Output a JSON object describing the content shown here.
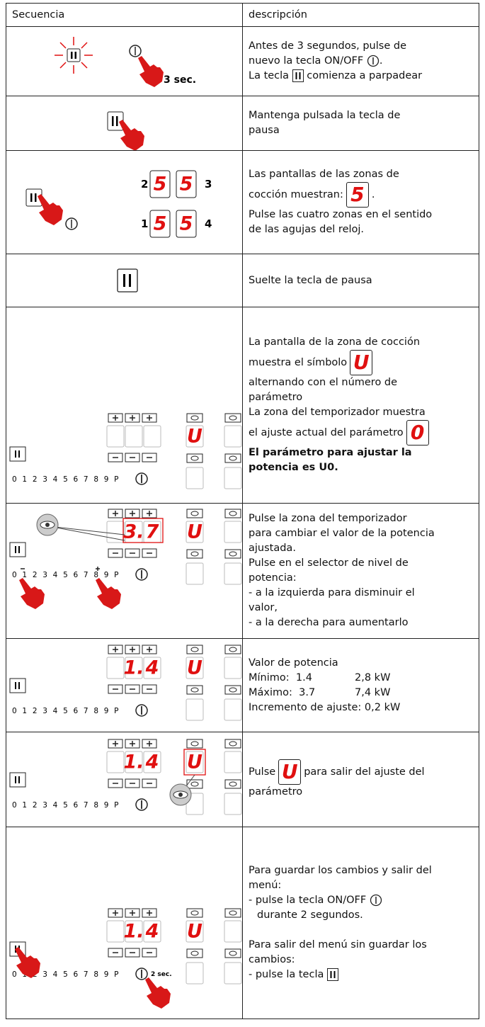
{
  "table": {
    "header": [
      "Secuencia",
      "descripción"
    ],
    "rows": [
      {
        "sequence": {
          "label": "3 sec."
        },
        "description": [
          "Antes de 3 segundos, pulse de",
          "nuevo la tecla ON/OFF",
          ".",
          "La tecla",
          "comienza a parpadear"
        ]
      },
      {
        "description": [
          "Mantenga pulsada la tecla de",
          "pausa"
        ]
      },
      {
        "sequence": {
          "zones": [
            "2",
            "3",
            "1",
            "4"
          ],
          "display": "5"
        },
        "description": [
          "Las pantallas de las zonas de",
          "cocción muestran:",
          ".",
          "Pulse las cuatro zonas en el sentido",
          "de las agujas del reloj."
        ],
        "display": "5"
      },
      {
        "description": [
          "Suelte la tecla de pausa"
        ]
      },
      {
        "panel": {
          "zone": "U",
          "scale": "0 1 2 3 4 5 6 7 8 9 P"
        },
        "description": [
          "La pantalla de la zona de cocción",
          "muestra el símbolo",
          "alternando con el número de",
          "parámetro",
          "La zona del temporizador muestra",
          "el ajuste actual del parámetro",
          "El parámetro para ajustar la",
          "potencia es U0."
        ],
        "displays": [
          "U",
          "0"
        ]
      },
      {
        "panel": {
          "power": [
            "3.",
            "7"
          ],
          "zone": "U",
          "scale": "0 1 2 3 4 5 6 7 8 9 P"
        },
        "description": [
          "Pulse la zona del temporizador",
          "para cambiar el valor de la potencia",
          "ajustada.",
          "Pulse en el selector de nivel de",
          "potencia:",
          "- a la izquierda para disminuir el",
          "valor,",
          "- a la derecha para aumentarlo"
        ]
      },
      {
        "panel": {
          "power": [
            "1.",
            "4"
          ],
          "zone": "U",
          "scale": "0 1 2 3 4 5 6 7 8 9 P"
        },
        "description": [
          "Valor de potencia",
          "Mínimo:  1.4",
          "2,8 kW",
          "Máximo:  3.7",
          "7,4 kW",
          "Incremento de ajuste: 0,2 kW"
        ]
      },
      {
        "panel": {
          "power": [
            "1.",
            "4"
          ],
          "zone": "U",
          "scale": "0 1 2 3 4 5 6 7 8 9 P"
        },
        "description": [
          "Pulse",
          "para salir del ajuste del",
          "parámetro"
        ],
        "display": "U"
      },
      {
        "panel": {
          "power": [
            "1.",
            "4"
          ],
          "zone": "U",
          "scale": "0 1 2 3 4 5 6 7 8 9 P",
          "label": "2 sec."
        },
        "description": [
          "Para guardar los cambios y salir del",
          "menú:",
          "- pulse la tecla ON/OFF",
          "durante 2 segundos.",
          "Para salir del menú sin guardar los",
          "cambios:",
          "- pulse la tecla"
        ]
      }
    ]
  }
}
